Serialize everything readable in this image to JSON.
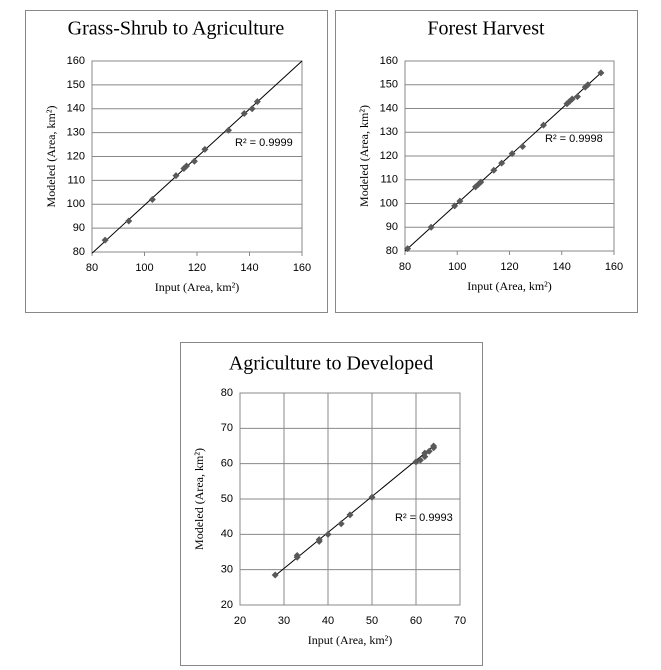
{
  "chart_data": [
    {
      "type": "scatter",
      "title": "Grass-Shrub to Agriculture",
      "x_label": "Input (Area, km²)",
      "y_label": "Modeled (Area, km²)",
      "annotation": "R² = 0.9999",
      "x": [
        85,
        94,
        103,
        112,
        115,
        116,
        119,
        123,
        132,
        138,
        141,
        143
      ],
      "values": [
        85,
        93,
        102,
        112,
        115,
        116,
        118,
        123,
        131,
        138,
        140,
        143
      ],
      "trendline": {
        "x": [
          80,
          160
        ],
        "y": [
          79.5,
          160
        ]
      },
      "color": "#595959",
      "line_color": "#000000",
      "xlim": [
        80,
        160
      ],
      "xticks": [
        80,
        100,
        120,
        140,
        160
      ],
      "ylim": [
        80,
        160
      ],
      "yticks": [
        80,
        90,
        100,
        110,
        120,
        130,
        140,
        150,
        160
      ],
      "grid": "horizontal"
    },
    {
      "type": "scatter",
      "title": "Forest Harvest",
      "x_label": "Input (Area, km²)",
      "y_label": "Modeled (Area, km²)",
      "annotation": "R² = 0.9998",
      "x": [
        81,
        90,
        99,
        101,
        107,
        108,
        109,
        114,
        117,
        121,
        125,
        133,
        142,
        143,
        144,
        146,
        149,
        150,
        155
      ],
      "values": [
        81,
        90,
        99,
        101,
        107,
        108,
        109,
        114,
        117,
        121,
        124,
        133,
        142,
        143,
        144,
        145,
        149,
        150,
        155
      ],
      "trendline": {
        "x": [
          80,
          155
        ],
        "y": [
          80,
          155
        ]
      },
      "color": "#595959",
      "line_color": "#000000",
      "xlim": [
        80,
        160
      ],
      "xticks": [
        80,
        100,
        120,
        140,
        160
      ],
      "ylim": [
        80,
        160
      ],
      "yticks": [
        80,
        90,
        100,
        110,
        120,
        130,
        140,
        150,
        160
      ],
      "grid": "horizontal"
    },
    {
      "type": "scatter",
      "title": "Agriculture to Developed",
      "x_label": "Input (Area, km²)",
      "y_label": "Modeled (Area, km²)",
      "annotation": "R² = 0.9993",
      "x": [
        28,
        33,
        33,
        38,
        38,
        40,
        43,
        45,
        50,
        60,
        61,
        62,
        62,
        63,
        64,
        64
      ],
      "values": [
        28.5,
        33.5,
        34,
        38.5,
        38,
        40,
        43,
        45.5,
        50.5,
        60.5,
        61,
        62,
        63,
        63.5,
        64.5,
        65
      ],
      "trendline": {
        "x": [
          28,
          64
        ],
        "y": [
          28.3,
          65
        ]
      },
      "color": "#595959",
      "line_color": "#000000",
      "xlim": [
        20,
        70
      ],
      "xticks": [
        20,
        30,
        40,
        50,
        60,
        70
      ],
      "ylim": [
        20,
        80
      ],
      "yticks": [
        20,
        30,
        40,
        50,
        60,
        70,
        80
      ],
      "grid": "both"
    }
  ]
}
